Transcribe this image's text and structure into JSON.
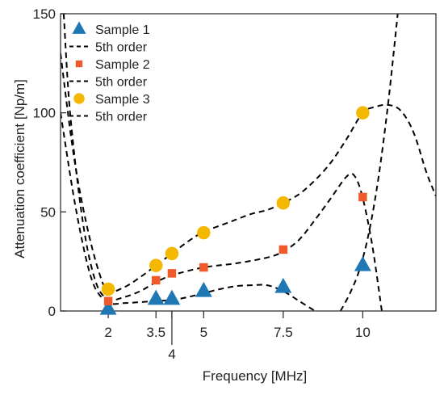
{
  "chart_data": {
    "type": "scatter",
    "title": "",
    "xlabel": "Frequency [MHz]",
    "ylabel": "Attenuation coefficient [Np/m]",
    "xlim": [
      0.5,
      12.3
    ],
    "ylim": [
      0,
      150
    ],
    "x_ticks": [
      2,
      3.5,
      4,
      5,
      7.5,
      10
    ],
    "x_tick_labels": [
      "2",
      "3.5",
      "4",
      "5",
      "7.5",
      "10"
    ],
    "y_ticks": [
      0,
      50,
      100,
      150
    ],
    "y_tick_labels": [
      "0",
      "50",
      "100",
      "150"
    ],
    "grid": false,
    "legend_position": "top-left",
    "series": [
      {
        "name": "Sample 1",
        "marker": "triangle",
        "color": "#1f77b4",
        "points": [
          [
            2,
            1
          ],
          [
            3.5,
            6
          ],
          [
            4,
            6
          ],
          [
            5,
            10
          ],
          [
            7.5,
            12
          ],
          [
            10,
            23
          ]
        ]
      },
      {
        "name": "5th order",
        "line": "dashed",
        "color": "#000000",
        "curve": [
          [
            0.5,
            100
          ],
          [
            1.0,
            50
          ],
          [
            1.5,
            15
          ],
          [
            2.0,
            4.5
          ],
          [
            2.5,
            4
          ],
          [
            3.0,
            4.5
          ],
          [
            3.5,
            5
          ],
          [
            4.0,
            5.5
          ],
          [
            4.5,
            7
          ],
          [
            5.0,
            9
          ],
          [
            5.5,
            11
          ],
          [
            6.0,
            12.5
          ],
          [
            6.5,
            13
          ],
          [
            7.0,
            13
          ],
          [
            7.5,
            10
          ],
          [
            8.0,
            5
          ],
          [
            8.5,
            0
          ]
        ]
      },
      {
        "name": "Sample 2",
        "marker": "square",
        "color": "#ee5a2a",
        "points": [
          [
            2,
            5
          ],
          [
            3.5,
            15.5
          ],
          [
            4,
            19
          ],
          [
            5,
            22
          ],
          [
            7.5,
            31
          ],
          [
            10,
            57.5
          ]
        ]
      },
      {
        "name": "5th order",
        "line": "dashed",
        "color": "#000000",
        "curve": [
          [
            0.6,
            150
          ],
          [
            0.8,
            100
          ],
          [
            1.2,
            45
          ],
          [
            1.6,
            15
          ],
          [
            2.0,
            6
          ],
          [
            2.5,
            7
          ],
          [
            3.0,
            10
          ],
          [
            3.5,
            14.5
          ],
          [
            4.0,
            18
          ],
          [
            5.0,
            22
          ],
          [
            6.0,
            24
          ],
          [
            7.0,
            27
          ],
          [
            7.5,
            30
          ],
          [
            8.0,
            36
          ],
          [
            8.5,
            46
          ],
          [
            9.0,
            57
          ],
          [
            9.5,
            68
          ],
          [
            9.75,
            68
          ],
          [
            10.0,
            57
          ],
          [
            10.3,
            33
          ],
          [
            10.6,
            0
          ]
        ]
      },
      {
        "name": "Sample 3",
        "marker": "circle",
        "color": "#f5b800",
        "points": [
          [
            2,
            11
          ],
          [
            3.5,
            23
          ],
          [
            4,
            29
          ],
          [
            5,
            39.5
          ],
          [
            7.5,
            54.5
          ],
          [
            10,
            100
          ]
        ]
      },
      {
        "name": "5th order",
        "line": "dashed",
        "color": "#000000",
        "curve": [
          [
            0.5,
            130
          ],
          [
            0.9,
            80
          ],
          [
            1.3,
            45
          ],
          [
            1.7,
            20
          ],
          [
            2.0,
            10
          ],
          [
            2.5,
            12
          ],
          [
            3.0,
            17
          ],
          [
            3.5,
            23
          ],
          [
            4.0,
            29
          ],
          [
            4.5,
            35
          ],
          [
            5.0,
            40
          ],
          [
            5.5,
            43
          ],
          [
            6.0,
            46
          ],
          [
            6.5,
            49
          ],
          [
            7.0,
            51
          ],
          [
            7.5,
            54.5
          ],
          [
            8.0,
            59
          ],
          [
            8.5,
            66
          ],
          [
            9.0,
            75
          ],
          [
            9.5,
            87
          ],
          [
            10.0,
            100
          ],
          [
            10.4,
            103
          ],
          [
            10.8,
            104
          ],
          [
            11.2,
            101
          ],
          [
            11.6,
            90
          ],
          [
            12.0,
            70
          ],
          [
            12.3,
            58
          ]
        ]
      }
    ],
    "extra_curves": [
      {
        "for_series": "Sample 1",
        "line": "dashed",
        "color": "#000000",
        "curve": [
          [
            9.3,
            0
          ],
          [
            9.6,
            9
          ],
          [
            9.9,
            21
          ],
          [
            10.2,
            40
          ],
          [
            10.5,
            68
          ],
          [
            10.8,
            105
          ],
          [
            11.1,
            150
          ]
        ]
      }
    ]
  }
}
